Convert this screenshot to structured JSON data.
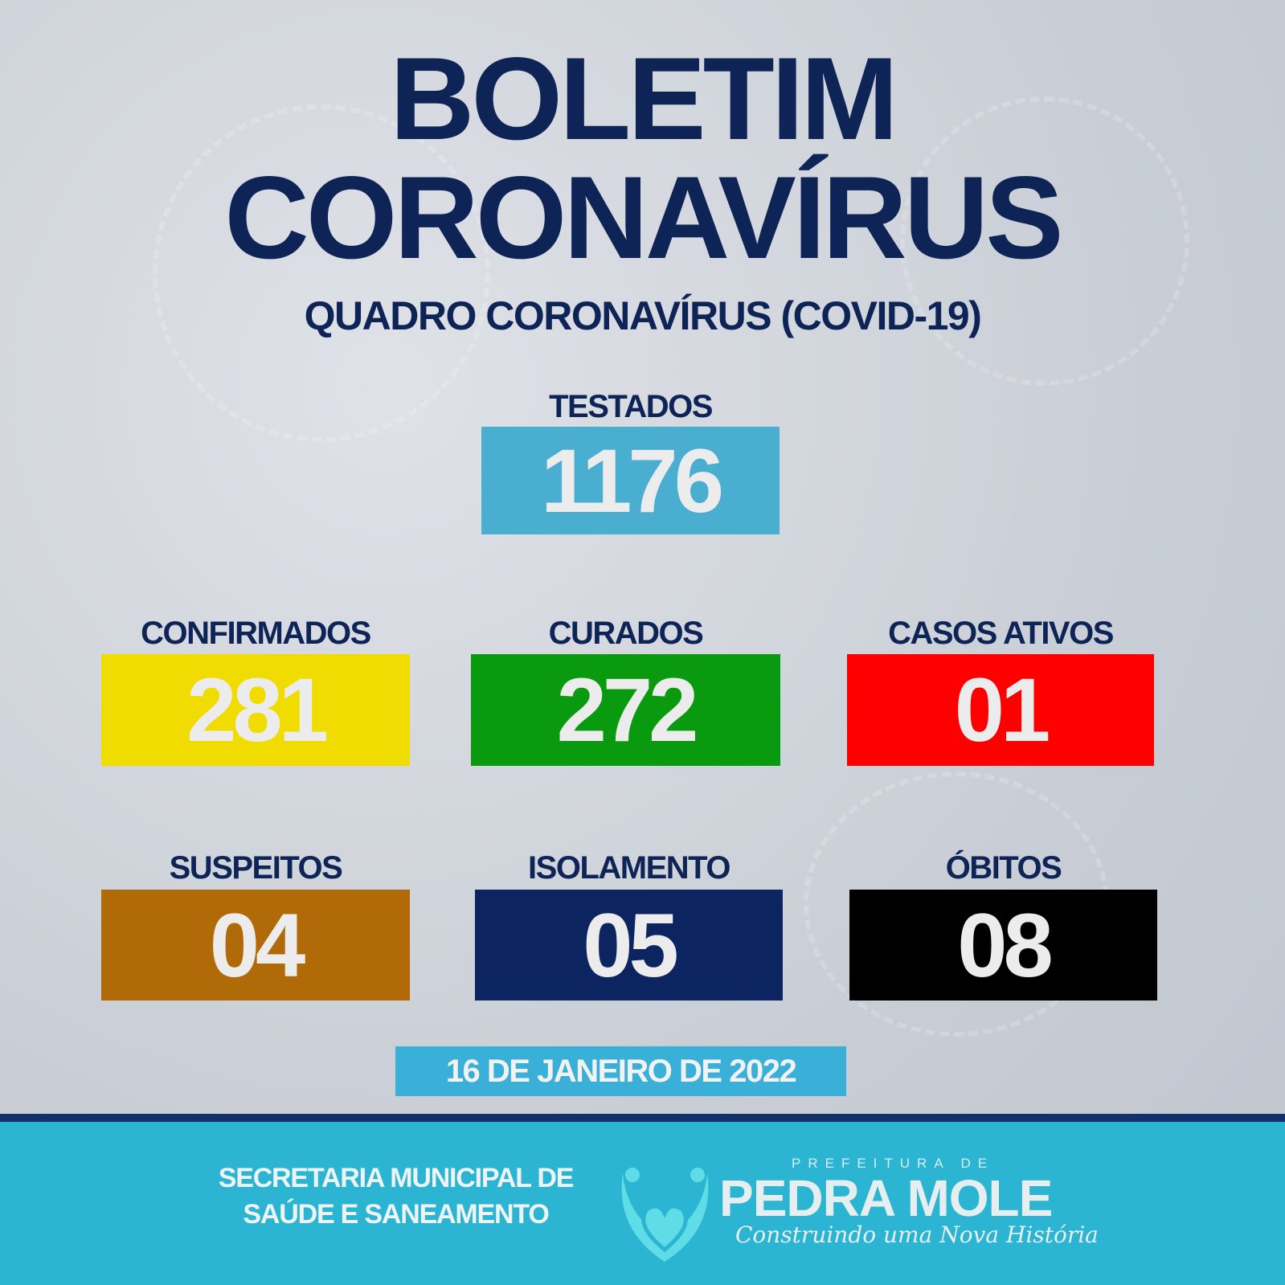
{
  "title_line1": "BOLETIM",
  "title_line2": "CORONAVÍRUS",
  "subtitle": "QUADRO CORONAVÍRUS (COVID-19)",
  "stats": [
    {
      "label": "TESTADOS",
      "value": "1176",
      "color": "#4aaed0"
    },
    {
      "label": "CONFIRMADOS",
      "value": "281",
      "color": "#f0dc00"
    },
    {
      "label": "CURADOS",
      "value": "272",
      "color": "#0a9a10"
    },
    {
      "label": "CASOS ATIVOS",
      "value": "01",
      "color": "#ff0000"
    },
    {
      "label": "SUSPEITOS",
      "value": "04",
      "color": "#b06a08"
    },
    {
      "label": "ISOLAMENTO",
      "value": "05",
      "color": "#0c2460"
    },
    {
      "label": "ÓBITOS",
      "value": "08",
      "color": "#000000"
    }
  ],
  "date": "16 DE JANEIRO DE 2022",
  "footer": {
    "line1": "SECRETARIA MUNICIPAL DE",
    "line2": "SAÚDE E SANEAMENTO",
    "logo_top": "PREFEITURA DE",
    "logo_name": "PEDRA MOLE",
    "logo_slogan": "Construindo uma Nova História"
  }
}
